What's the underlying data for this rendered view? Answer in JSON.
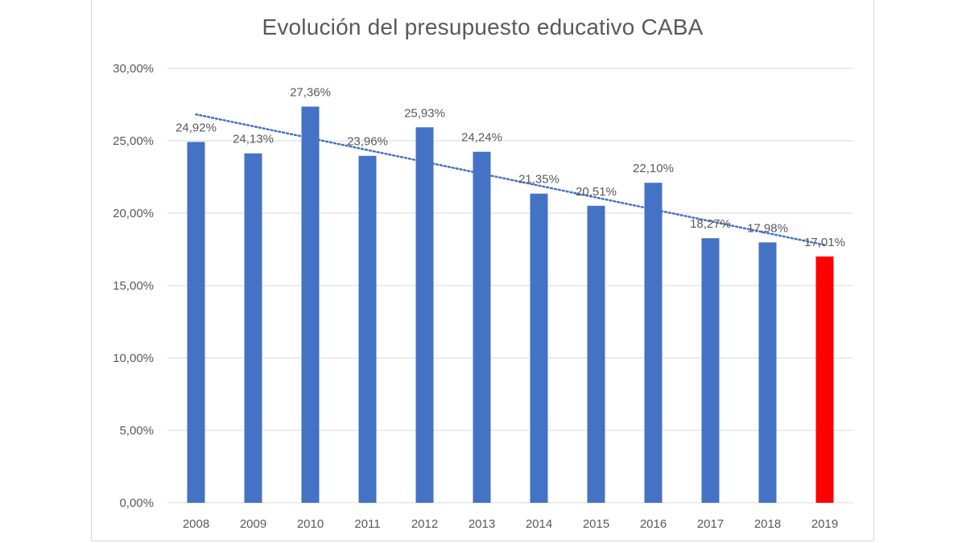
{
  "chart_data": {
    "type": "bar",
    "title": "Evolución del presupuesto educativo CABA",
    "xlabel": "",
    "ylabel": "",
    "categories": [
      "2008",
      "2009",
      "2010",
      "2011",
      "2012",
      "2013",
      "2014",
      "2015",
      "2016",
      "2017",
      "2018",
      "2019"
    ],
    "values": [
      24.92,
      24.13,
      27.36,
      23.96,
      25.93,
      24.24,
      21.35,
      20.51,
      22.1,
      18.27,
      17.98,
      17.01
    ],
    "data_labels": [
      "24,92%",
      "24,13%",
      "27,36%",
      "23,96%",
      "25,93%",
      "24,24%",
      "21,35%",
      "20,51%",
      "22,10%",
      "18,27%",
      "17,98%",
      "17,01%"
    ],
    "ylim": [
      0,
      30
    ],
    "yticks": [
      0,
      5,
      10,
      15,
      20,
      25,
      30
    ],
    "ytick_labels": [
      "0,00%",
      "5,00%",
      "10,00%",
      "15,00%",
      "20,00%",
      "25,00%",
      "30,00%"
    ],
    "bar_color": "#4472C4",
    "highlight_color": "#FF0000",
    "highlight_index": 11,
    "trendline": {
      "type": "linear",
      "style": "dotted",
      "color": "#4472C4"
    },
    "grid": true,
    "legend": "none"
  }
}
